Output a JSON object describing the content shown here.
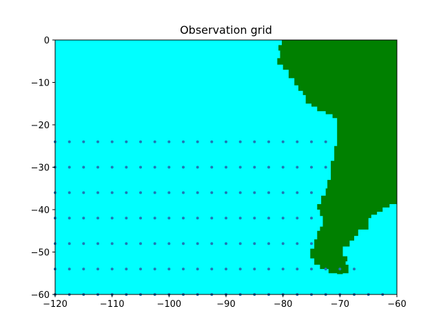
{
  "chart_data": {
    "type": "scatter",
    "title": "Observation grid",
    "xlabel": "",
    "ylabel": "",
    "xlim": [
      -120,
      -60
    ],
    "ylim": [
      -60,
      0
    ],
    "xticks": [
      -120,
      -110,
      -100,
      -90,
      -80,
      -70,
      -60
    ],
    "yticks": [
      0,
      -10,
      -20,
      -30,
      -40,
      -50,
      -60
    ],
    "xtick_labels": [
      "−120",
      "−110",
      "−100",
      "−90",
      "−80",
      "−70",
      "−60"
    ],
    "ytick_labels": [
      "0",
      "−10",
      "−20",
      "−30",
      "−40",
      "−50",
      "−60"
    ],
    "grid": false,
    "colors": {
      "ocean": "#00ffff",
      "land": "#008000",
      "points": "#1f77b4"
    },
    "land_polygon": [
      [
        -79.5,
        0
      ],
      [
        -60,
        0
      ],
      [
        -60,
        -38.7
      ],
      [
        -61.3,
        -38.7
      ],
      [
        -61.3,
        -39.5
      ],
      [
        -62.5,
        -39.5
      ],
      [
        -62.5,
        -40.5
      ],
      [
        -63.5,
        -40.5
      ],
      [
        -63.5,
        -41.2
      ],
      [
        -64.5,
        -41.2
      ],
      [
        -64.5,
        -42
      ],
      [
        -65,
        -42
      ],
      [
        -65,
        -44.7
      ],
      [
        -66.8,
        -44.7
      ],
      [
        -66.8,
        -46.2
      ],
      [
        -67.5,
        -46.2
      ],
      [
        -67.5,
        -47.3
      ],
      [
        -68.3,
        -47.3
      ],
      [
        -68.3,
        -48.7
      ],
      [
        -69.5,
        -48.7
      ],
      [
        -69.5,
        -51
      ],
      [
        -68.7,
        -51
      ],
      [
        -68.7,
        -52.2
      ],
      [
        -69,
        -52.2
      ],
      [
        -69,
        -53
      ],
      [
        -68.5,
        -53
      ],
      [
        -68.5,
        -55
      ],
      [
        -69.5,
        -55
      ],
      [
        -69.5,
        -55.2
      ],
      [
        -70.5,
        -55.2
      ],
      [
        -70.5,
        -55
      ],
      [
        -72,
        -55
      ],
      [
        -72,
        -54
      ],
      [
        -73.5,
        -54
      ],
      [
        -73.5,
        -53
      ],
      [
        -74.5,
        -53
      ],
      [
        -74.5,
        -51.5
      ],
      [
        -75.2,
        -51.5
      ],
      [
        -75.2,
        -49.2
      ],
      [
        -74.5,
        -49.2
      ],
      [
        -74.5,
        -47
      ],
      [
        -74,
        -47
      ],
      [
        -74,
        -45
      ],
      [
        -73.5,
        -45
      ],
      [
        -73.5,
        -44
      ],
      [
        -73,
        -44
      ],
      [
        -73,
        -41.5
      ],
      [
        -73.5,
        -41.5
      ],
      [
        -73.5,
        -40
      ],
      [
        -74,
        -40
      ],
      [
        -74,
        -38.7
      ],
      [
        -73.3,
        -38.7
      ],
      [
        -73.3,
        -36.7
      ],
      [
        -72.5,
        -36.7
      ],
      [
        -72.5,
        -35
      ],
      [
        -72.2,
        -35
      ],
      [
        -72.2,
        -33
      ],
      [
        -71.6,
        -33
      ],
      [
        -71.6,
        -28.5
      ],
      [
        -71,
        -28.5
      ],
      [
        -71,
        -25
      ],
      [
        -70.5,
        -25
      ],
      [
        -70.5,
        -18.4
      ],
      [
        -71.3,
        -18.4
      ],
      [
        -71.3,
        -17.5
      ],
      [
        -72.5,
        -17.5
      ],
      [
        -72.5,
        -16.8
      ],
      [
        -74,
        -16.8
      ],
      [
        -74,
        -15.7
      ],
      [
        -75,
        -15.7
      ],
      [
        -75,
        -15
      ],
      [
        -76,
        -15
      ],
      [
        -76,
        -13
      ],
      [
        -76.5,
        -13
      ],
      [
        -76.5,
        -12
      ],
      [
        -77.3,
        -12
      ],
      [
        -77.3,
        -10.7
      ],
      [
        -78,
        -10.7
      ],
      [
        -78,
        -9
      ],
      [
        -79,
        -9
      ],
      [
        -79,
        -7
      ],
      [
        -80,
        -7
      ],
      [
        -80,
        -5.8
      ],
      [
        -81,
        -5.8
      ],
      [
        -81,
        -4.3
      ],
      [
        -80.5,
        -4.3
      ],
      [
        -80.5,
        -2.5
      ],
      [
        -80.8,
        -2.5
      ],
      [
        -80.8,
        -1.2
      ],
      [
        -80.2,
        -1.2
      ],
      [
        -80.2,
        0
      ]
    ],
    "point_x": [
      -120,
      -117.5,
      -115,
      -112.5,
      -110,
      -107.5,
      -105,
      -102.5,
      -100,
      -97.5,
      -95,
      -92.5,
      -90,
      -87.5,
      -85,
      -82.5,
      -80,
      -77.5,
      -75,
      -72.5
    ],
    "point_y": [
      -24,
      -30,
      -36,
      -42,
      -48,
      -54,
      -60
    ],
    "series": [
      {
        "y": -24,
        "x": [
          -120,
          -117.5,
          -115,
          -112.5,
          -110,
          -107.5,
          -105,
          -102.5,
          -100,
          -97.5,
          -95,
          -92.5,
          -90,
          -87.5,
          -85,
          -82.5,
          -80,
          -77.5,
          -75,
          -72.5
        ]
      },
      {
        "y": -30,
        "x": [
          -120,
          -117.5,
          -115,
          -112.5,
          -110,
          -107.5,
          -105,
          -102.5,
          -100,
          -97.5,
          -95,
          -92.5,
          -90,
          -87.5,
          -85,
          -82.5,
          -80,
          -77.5,
          -75,
          -72.5
        ]
      },
      {
        "y": -36,
        "x": [
          -120,
          -117.5,
          -115,
          -112.5,
          -110,
          -107.5,
          -105,
          -102.5,
          -100,
          -97.5,
          -95,
          -92.5,
          -90,
          -87.5,
          -85,
          -82.5,
          -80,
          -77.5,
          -75
        ]
      },
      {
        "y": -42,
        "x": [
          -120,
          -117.5,
          -115,
          -112.5,
          -110,
          -107.5,
          -105,
          -102.5,
          -100,
          -97.5,
          -95,
          -92.5,
          -90,
          -87.5,
          -85,
          -82.5,
          -80,
          -77.5,
          -75
        ]
      },
      {
        "y": -48,
        "x": [
          -120,
          -117.5,
          -115,
          -112.5,
          -110,
          -107.5,
          -105,
          -102.5,
          -100,
          -97.5,
          -95,
          -92.5,
          -90,
          -87.5,
          -85,
          -82.5,
          -80,
          -77.5,
          -75
        ]
      },
      {
        "y": -54,
        "x": [
          -120,
          -117.5,
          -115,
          -112.5,
          -110,
          -107.5,
          -105,
          -102.5,
          -100,
          -97.5,
          -95,
          -92.5,
          -90,
          -87.5,
          -85,
          -82.5,
          -80,
          -77.5,
          -75,
          -72.5,
          -70,
          -67.5
        ]
      },
      {
        "y": -60,
        "x": [
          -120,
          -117.5,
          -115,
          -112.5,
          -110,
          -107.5,
          -105,
          -102.5,
          -100,
          -97.5,
          -95,
          -92.5,
          -90,
          -87.5,
          -85,
          -82.5,
          -80,
          -77.5,
          -75,
          -72.5,
          -70,
          -67.5,
          -65,
          -62.5
        ]
      }
    ]
  }
}
